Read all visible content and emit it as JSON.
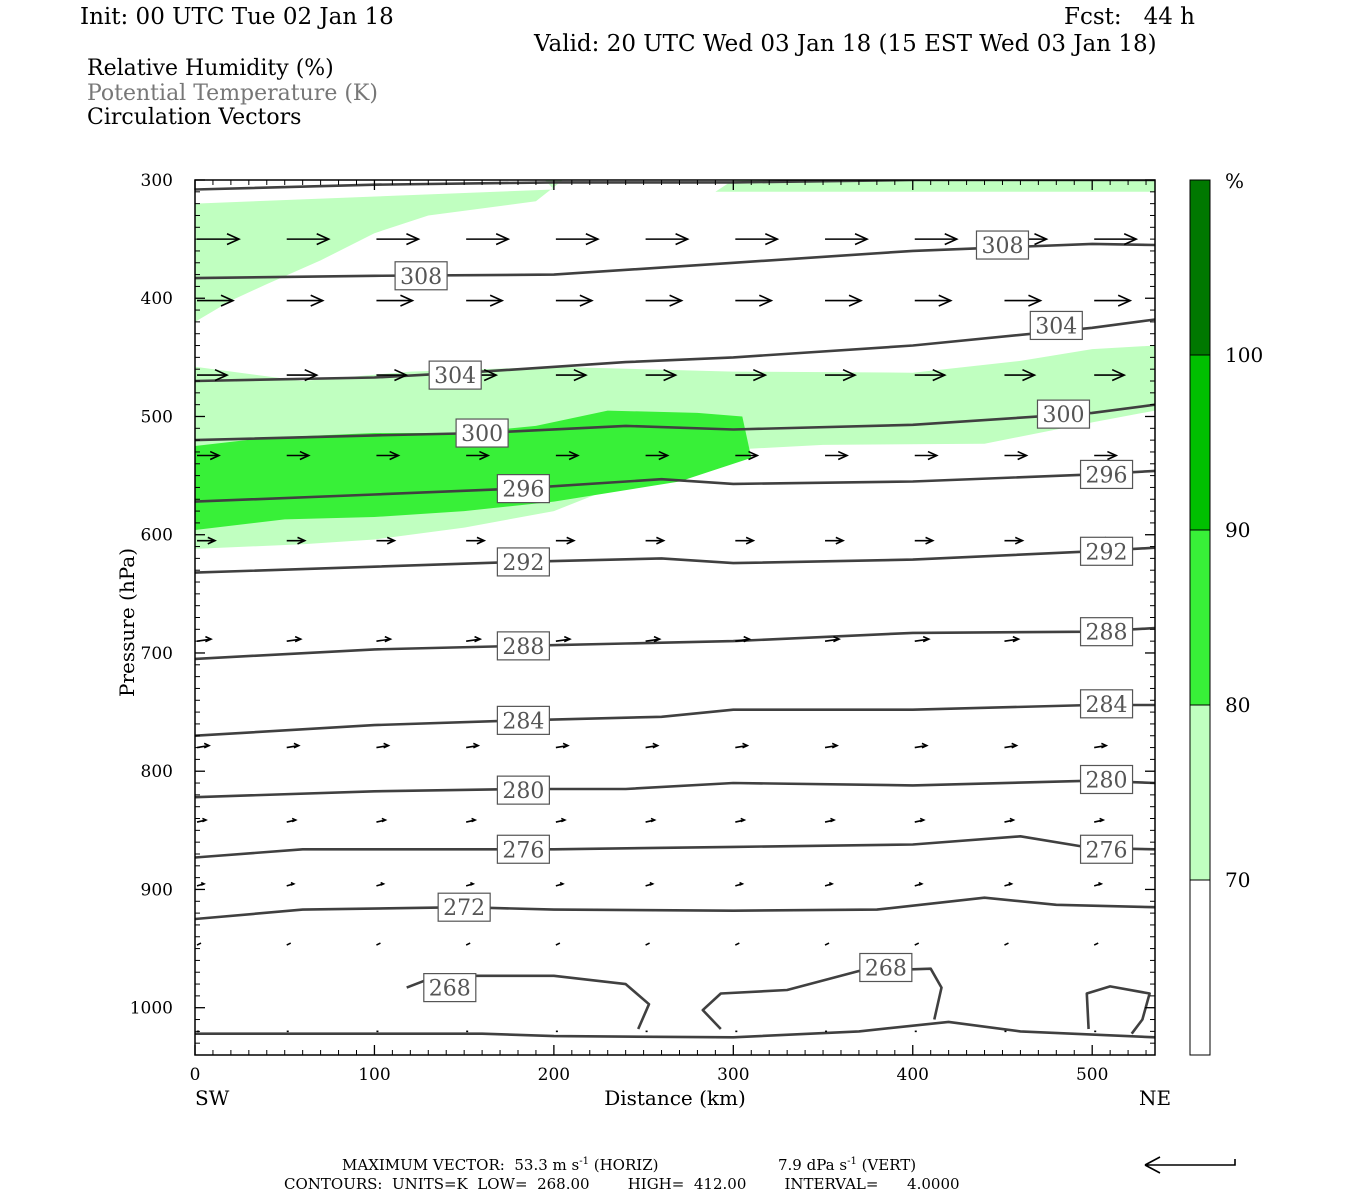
{
  "header": {
    "init": "Init: 00 UTC Tue 02 Jan 18",
    "fcst": "Fcst:   44 h",
    "valid": "Valid: 20 UTC Wed 03 Jan 18 (15 EST Wed 03 Jan 18)"
  },
  "legend": {
    "rh": "Relative Humidity (%)",
    "theta": "Potential Temperature (K)",
    "vectors": "Circulation Vectors"
  },
  "footer": {
    "max_vector_prefix": "MAXIMUM VECTOR:  53.3 m s",
    "horiz_suffix": " (HORIZ)",
    "vert_prefix": "7.9 dPa s",
    "vert_suffix": " (VERT)",
    "exponent": "-1",
    "contours": "CONTOURS:  UNITS=K  LOW=  268.00        HIGH=  412.00        INTERVAL=      4.0000"
  },
  "colors": {
    "rh70": "#c0ffc0",
    "rh80": "#38f038",
    "rh90": "#00c000",
    "rh100": "#007800",
    "contour": "#404040",
    "contour_label": "#555555"
  },
  "chart_data": {
    "type": "cross-section",
    "xlabel": "Distance (km)",
    "ylabel": "Pressure (hPa)",
    "xlim": [
      0,
      535
    ],
    "ylim": [
      300,
      1040
    ],
    "x_ticks": [
      0,
      100,
      200,
      300,
      400,
      500
    ],
    "y_ticks": [
      300,
      400,
      500,
      600,
      700,
      800,
      900,
      1000
    ],
    "x_end_labels": {
      "left": "SW",
      "right": "NE"
    },
    "colorbar": {
      "unit": "%",
      "levels": [
        70,
        80,
        90,
        100
      ],
      "colors": [
        "#ffffff",
        "#c0ffc0",
        "#38f038",
        "#00c000",
        "#007800"
      ]
    },
    "rh_regions": [
      {
        "level": 70,
        "polygon": [
          [
            0,
            320
          ],
          [
            200,
            308
          ],
          [
            195,
            300
          ],
          [
            300,
            300
          ],
          [
            290,
            310
          ],
          [
            535,
            310
          ],
          [
            535,
            300
          ],
          [
            205,
            300
          ],
          [
            190,
            318
          ],
          [
            130,
            330
          ],
          [
            100,
            345
          ],
          [
            70,
            368
          ],
          [
            40,
            388
          ],
          [
            20,
            402
          ],
          [
            0,
            420
          ]
        ]
      },
      {
        "level": 70,
        "polygon": [
          [
            0,
            458
          ],
          [
            60,
            470
          ],
          [
            120,
            462
          ],
          [
            200,
            458
          ],
          [
            300,
            462
          ],
          [
            400,
            463
          ],
          [
            460,
            453
          ],
          [
            500,
            443
          ],
          [
            535,
            440
          ],
          [
            535,
            495
          ],
          [
            500,
            505
          ],
          [
            440,
            523
          ],
          [
            350,
            524
          ],
          [
            300,
            528
          ],
          [
            250,
            550
          ],
          [
            200,
            580
          ],
          [
            150,
            594
          ],
          [
            100,
            604
          ],
          [
            60,
            608
          ],
          [
            0,
            612
          ]
        ]
      },
      {
        "level": 80,
        "polygon": [
          [
            0,
            525
          ],
          [
            40,
            518
          ],
          [
            100,
            514
          ],
          [
            150,
            514
          ],
          [
            190,
            508
          ],
          [
            230,
            495
          ],
          [
            280,
            497
          ],
          [
            305,
            500
          ],
          [
            310,
            535
          ],
          [
            270,
            555
          ],
          [
            200,
            572
          ],
          [
            150,
            580
          ],
          [
            100,
            585
          ],
          [
            50,
            587
          ],
          [
            0,
            596
          ]
        ]
      }
    ],
    "isentropes": [
      {
        "theta": 268,
        "label_at": [
          142,
          983
        ],
        "segments": [
          [
            [
              0,
              1022
            ],
            [
              100,
              1022
            ],
            [
              160,
              1022
            ],
            [
              200,
              1024
            ],
            [
              300,
              1025
            ],
            [
              370,
              1020
            ],
            [
              420,
              1012
            ],
            [
              460,
              1020
            ],
            [
              535,
              1025
            ]
          ],
          [
            [
              118,
              983
            ],
            [
              135,
              973
            ],
            [
              200,
              973
            ],
            [
              240,
              980
            ],
            [
              253,
              997
            ],
            [
              247,
              1018
            ]
          ],
          [
            [
              293,
              1018
            ],
            [
              283,
              1002
            ],
            [
              293,
              988
            ],
            [
              330,
              985
            ],
            [
              370,
              969
            ],
            [
              410,
              967
            ],
            [
              416,
              983
            ],
            [
              412,
              1010
            ]
          ],
          [
            [
              498,
              1018
            ],
            [
              497,
              988
            ],
            [
              510,
              982
            ],
            [
              532,
              988
            ],
            [
              528,
              1010
            ],
            [
              522,
              1022
            ]
          ]
        ]
      },
      {
        "theta": 272,
        "points": [
          [
            0,
            925
          ],
          [
            60,
            917
          ],
          [
            150,
            915
          ],
          [
            200,
            917
          ],
          [
            300,
            918
          ],
          [
            380,
            917
          ],
          [
            440,
            907
          ],
          [
            480,
            913
          ],
          [
            535,
            915
          ]
        ],
        "label_at": [
          150,
          915
        ]
      },
      {
        "theta": 276,
        "points": [
          [
            0,
            873
          ],
          [
            60,
            866
          ],
          [
            150,
            866
          ],
          [
            200,
            866
          ],
          [
            300,
            864
          ],
          [
            400,
            862
          ],
          [
            460,
            855
          ],
          [
            500,
            865
          ],
          [
            535,
            866
          ]
        ],
        "label_at": [
          183,
          866
        ]
      },
      {
        "theta": 280,
        "points": [
          [
            0,
            822
          ],
          [
            100,
            817
          ],
          [
            180,
            815
          ],
          [
            240,
            815
          ],
          [
            300,
            810
          ],
          [
            400,
            812
          ],
          [
            500,
            808
          ],
          [
            535,
            810
          ]
        ],
        "label_at": [
          183,
          816
        ]
      },
      {
        "theta": 284,
        "points": [
          [
            0,
            770
          ],
          [
            100,
            761
          ],
          [
            180,
            757
          ],
          [
            260,
            754
          ],
          [
            300,
            748
          ],
          [
            400,
            748
          ],
          [
            500,
            744
          ],
          [
            535,
            744
          ]
        ],
        "label_at": [
          183,
          757
        ]
      },
      {
        "theta": 288,
        "points": [
          [
            0,
            705
          ],
          [
            100,
            697
          ],
          [
            180,
            694
          ],
          [
            240,
            692
          ],
          [
            300,
            690
          ],
          [
            400,
            683
          ],
          [
            500,
            682
          ],
          [
            535,
            679
          ]
        ],
        "label_at": [
          183,
          694
        ]
      },
      {
        "theta": 292,
        "points": [
          [
            0,
            632
          ],
          [
            100,
            627
          ],
          [
            180,
            623
          ],
          [
            260,
            620
          ],
          [
            300,
            624
          ],
          [
            400,
            621
          ],
          [
            500,
            614
          ],
          [
            535,
            611
          ]
        ],
        "label_at": [
          183,
          623
        ]
      },
      {
        "theta": 296,
        "points": [
          [
            0,
            572
          ],
          [
            100,
            566
          ],
          [
            180,
            561
          ],
          [
            260,
            553
          ],
          [
            300,
            557
          ],
          [
            400,
            555
          ],
          [
            500,
            549
          ],
          [
            535,
            546
          ]
        ],
        "label_at": [
          183,
          561
        ]
      },
      {
        "theta": 300,
        "points": [
          [
            0,
            520
          ],
          [
            100,
            516
          ],
          [
            160,
            514
          ],
          [
            240,
            508
          ],
          [
            300,
            511
          ],
          [
            400,
            507
          ],
          [
            500,
            497
          ],
          [
            535,
            490
          ]
        ],
        "label_at": [
          160,
          514
        ]
      },
      {
        "theta": 304,
        "points": [
          [
            0,
            470
          ],
          [
            100,
            467
          ],
          [
            160,
            462
          ],
          [
            240,
            454
          ],
          [
            300,
            450
          ],
          [
            400,
            440
          ],
          [
            500,
            425
          ],
          [
            535,
            418
          ]
        ],
        "label_at": [
          145,
          465
        ]
      },
      {
        "theta": 308,
        "points": [
          [
            0,
            383
          ],
          [
            100,
            381
          ],
          [
            200,
            380
          ],
          [
            300,
            370
          ],
          [
            400,
            360
          ],
          [
            500,
            354
          ],
          [
            535,
            355
          ]
        ],
        "label_at": [
          126,
          381
        ]
      },
      {
        "theta": 312,
        "points": [
          [
            0,
            308
          ],
          [
            100,
            304
          ],
          [
            200,
            302
          ],
          [
            300,
            302
          ],
          [
            400,
            300
          ],
          [
            535,
            300
          ]
        ],
        "label_at": null
      }
    ],
    "extra_labels": [
      {
        "theta": 308,
        "at": [
          450,
          355
        ]
      },
      {
        "theta": 304,
        "at": [
          480,
          423
        ]
      },
      {
        "theta": 300,
        "at": [
          484,
          498
        ]
      },
      {
        "theta": 296,
        "at": [
          508,
          549
        ]
      },
      {
        "theta": 292,
        "at": [
          508,
          614
        ]
      },
      {
        "theta": 288,
        "at": [
          508,
          682
        ]
      },
      {
        "theta": 284,
        "at": [
          508,
          743
        ]
      },
      {
        "theta": 280,
        "at": [
          508,
          807
        ]
      },
      {
        "theta": 276,
        "at": [
          508,
          866
        ]
      },
      {
        "theta": 268,
        "at": [
          385,
          966
        ]
      }
    ],
    "vector_rows": [
      {
        "p": 350,
        "len": 42,
        "dy": 0
      },
      {
        "p": 402,
        "len": 36,
        "dy": 0
      },
      {
        "p": 465,
        "len": 30,
        "dy": 0
      },
      {
        "p": 533,
        "len": 22,
        "dy": 0
      },
      {
        "p": 605,
        "len": 18,
        "dy": 0
      },
      {
        "p": 690,
        "len": 14,
        "dy": -1
      },
      {
        "p": 780,
        "len": 12,
        "dy": -1
      },
      {
        "p": 843,
        "len": 9,
        "dy": -1
      },
      {
        "p": 897,
        "len": 7,
        "dy": -1
      },
      {
        "p": 947,
        "len": 4,
        "dy": -1
      },
      {
        "p": 1020,
        "len": 2,
        "dy": 0
      }
    ],
    "vector_x": [
      0,
      50,
      100,
      150,
      200,
      250,
      300,
      350,
      400,
      450,
      500
    ]
  }
}
